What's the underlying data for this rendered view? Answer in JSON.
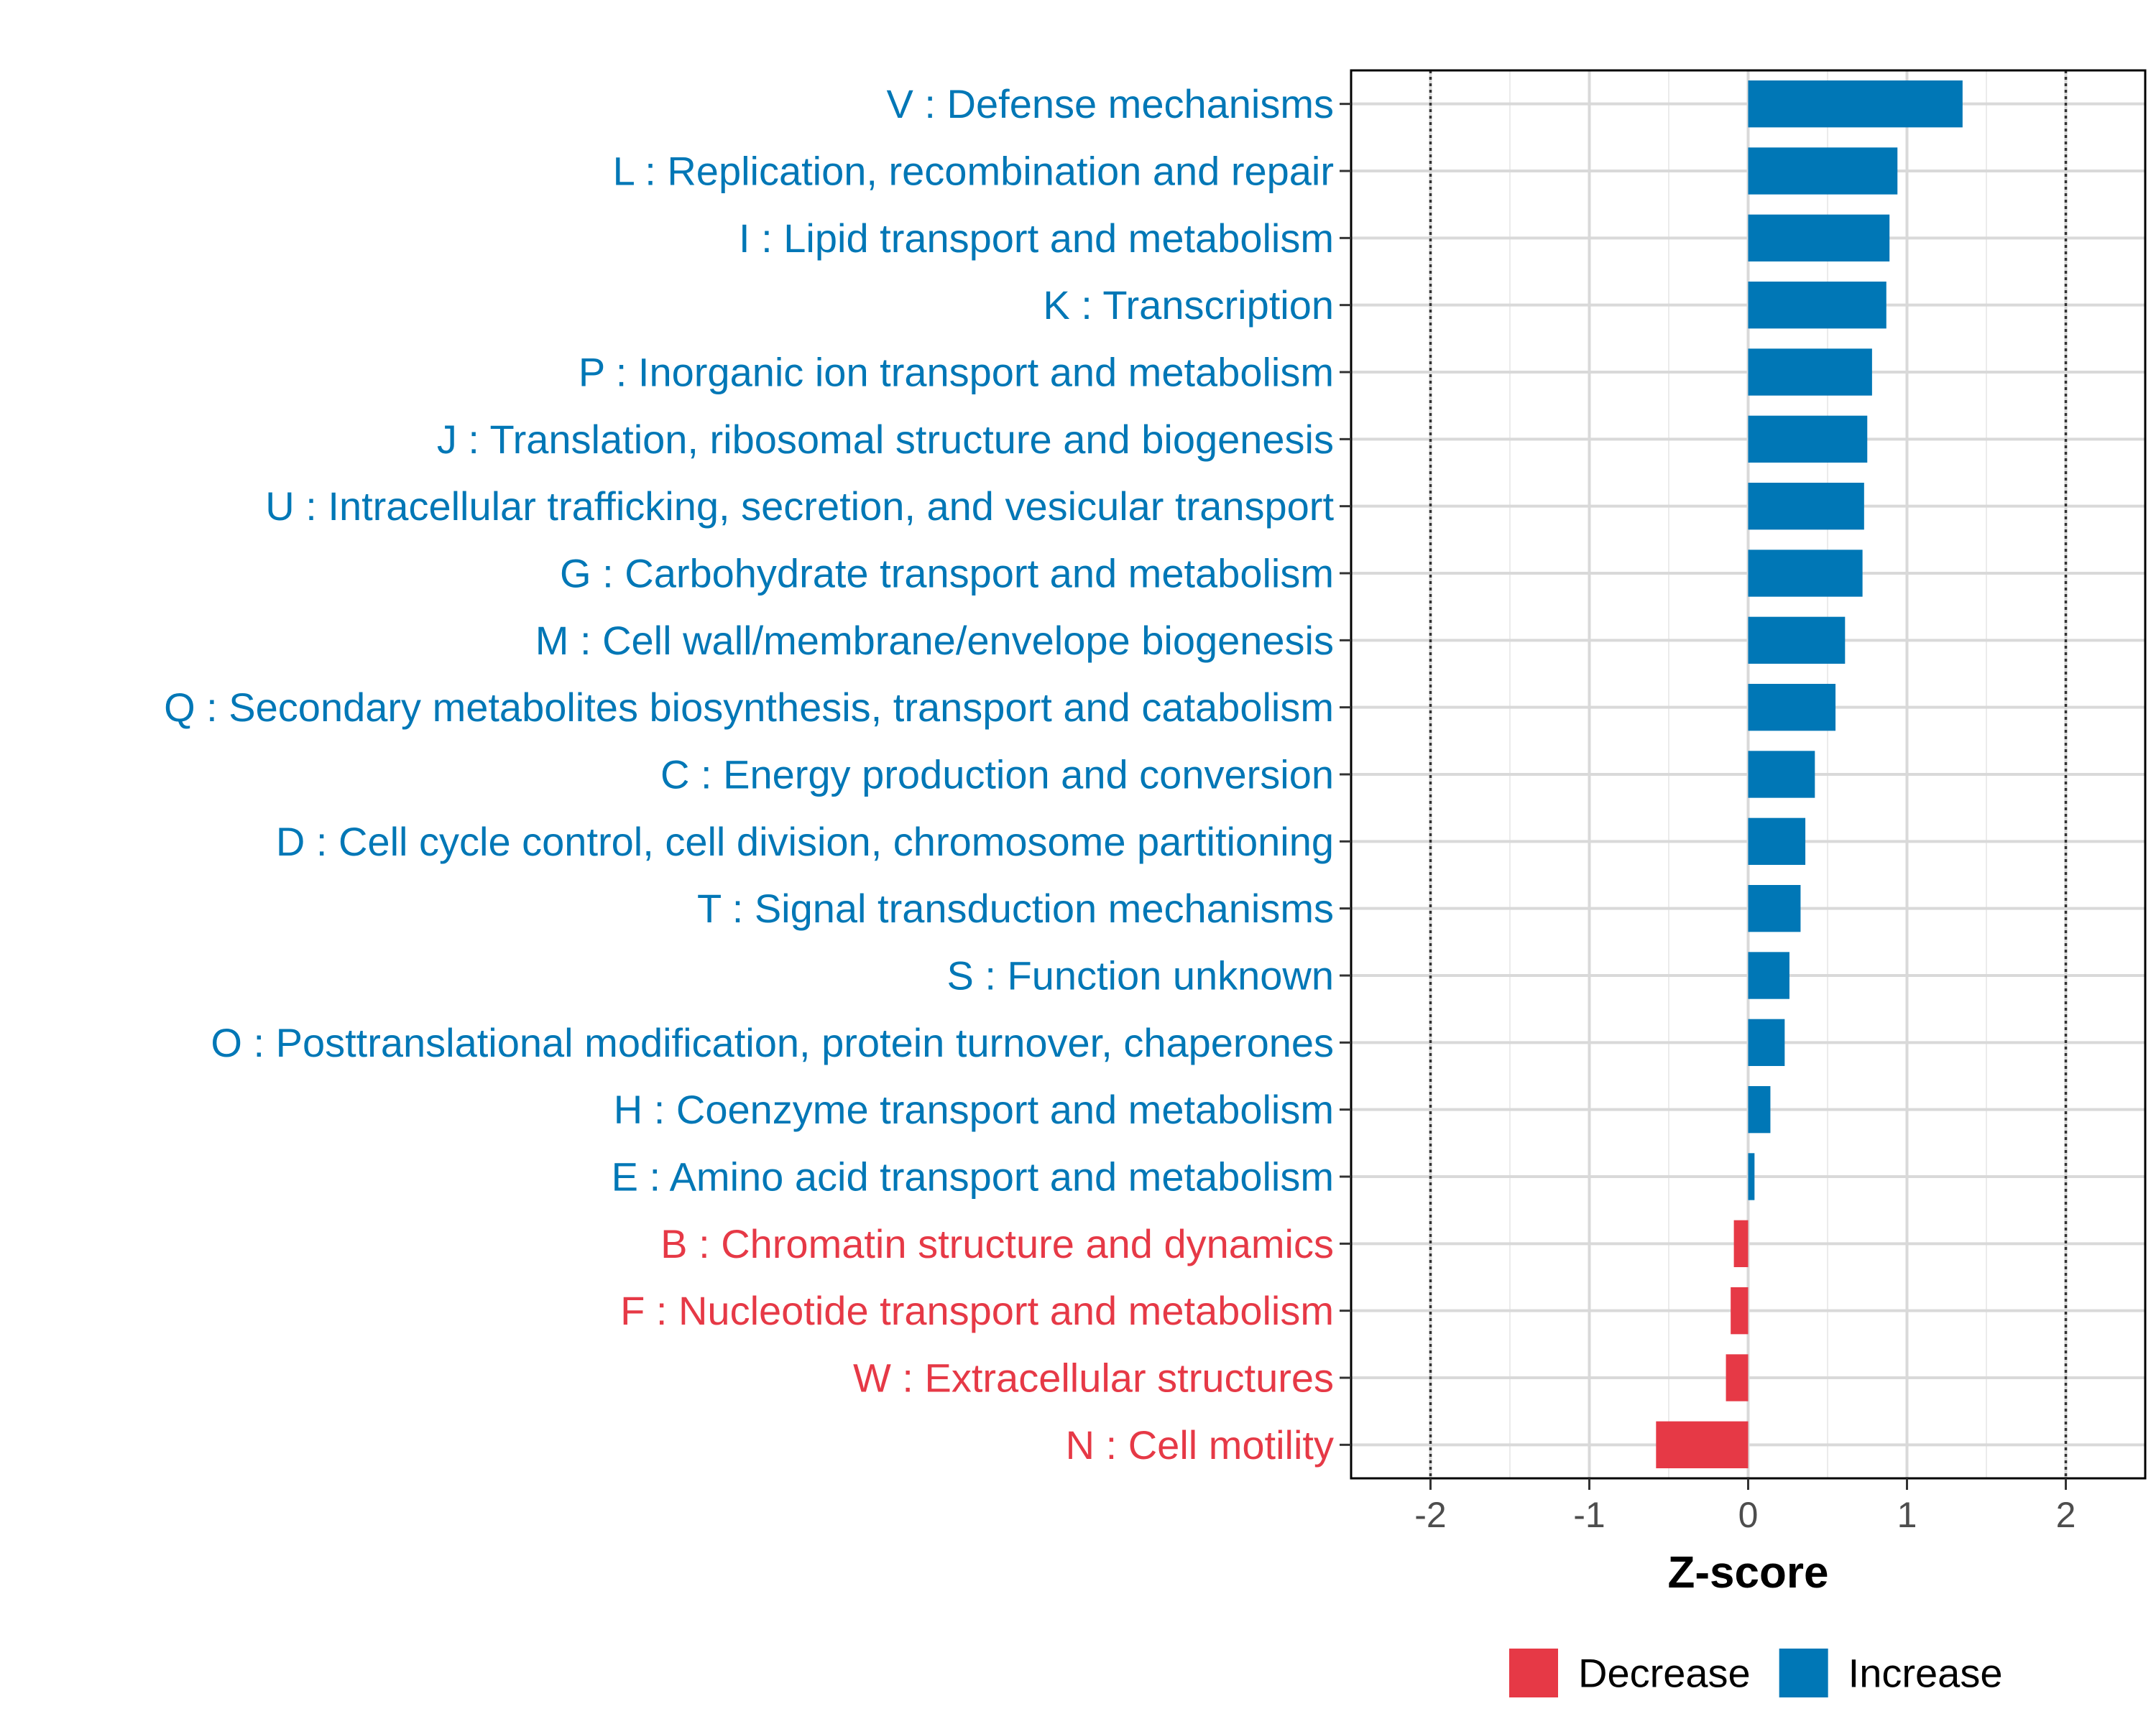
{
  "chart_data": {
    "type": "bar",
    "orientation": "horizontal",
    "title": "",
    "xlabel": "Z-score",
    "ylabel": "",
    "xlim": [
      -2.5,
      2.5
    ],
    "xticks": [
      -2,
      -1,
      0,
      1,
      2
    ],
    "reference_lines": [
      -2,
      2
    ],
    "grid": true,
    "legend_position": "bottom",
    "colors": {
      "Decrease": "#e63946",
      "Increase": "#0077b6"
    },
    "legend": [
      {
        "name": "Decrease",
        "color": "#e63946"
      },
      {
        "name": "Increase",
        "color": "#0077b6"
      }
    ],
    "categories": [
      "V : Defense mechanisms",
      "L : Replication, recombination and repair",
      "I : Lipid transport and metabolism",
      "K : Transcription",
      "P : Inorganic ion transport and metabolism",
      "J : Translation, ribosomal structure and biogenesis",
      "U : Intracellular trafficking, secretion, and vesicular transport",
      "G : Carbohydrate transport and metabolism",
      "M : Cell wall/membrane/envelope biogenesis",
      "Q : Secondary metabolites biosynthesis, transport and catabolism",
      "C : Energy production and conversion",
      "D : Cell cycle control, cell division, chromosome partitioning",
      "T : Signal transduction mechanisms",
      "S : Function unknown",
      "O : Posttranslational modification, protein turnover, chaperones",
      "H : Coenzyme transport and metabolism",
      "E : Amino acid transport and metabolism",
      "B : Chromatin structure and dynamics",
      "F : Nucleotide transport and metabolism",
      "W : Extracellular structures",
      "N : Cell motility"
    ],
    "values": [
      1.35,
      0.94,
      0.89,
      0.87,
      0.78,
      0.75,
      0.73,
      0.72,
      0.61,
      0.55,
      0.42,
      0.36,
      0.33,
      0.26,
      0.23,
      0.14,
      0.04,
      -0.09,
      -0.11,
      -0.14,
      -0.58
    ],
    "groups": [
      "Increase",
      "Increase",
      "Increase",
      "Increase",
      "Increase",
      "Increase",
      "Increase",
      "Increase",
      "Increase",
      "Increase",
      "Increase",
      "Increase",
      "Increase",
      "Increase",
      "Increase",
      "Increase",
      "Increase",
      "Decrease",
      "Decrease",
      "Decrease",
      "Decrease"
    ]
  }
}
